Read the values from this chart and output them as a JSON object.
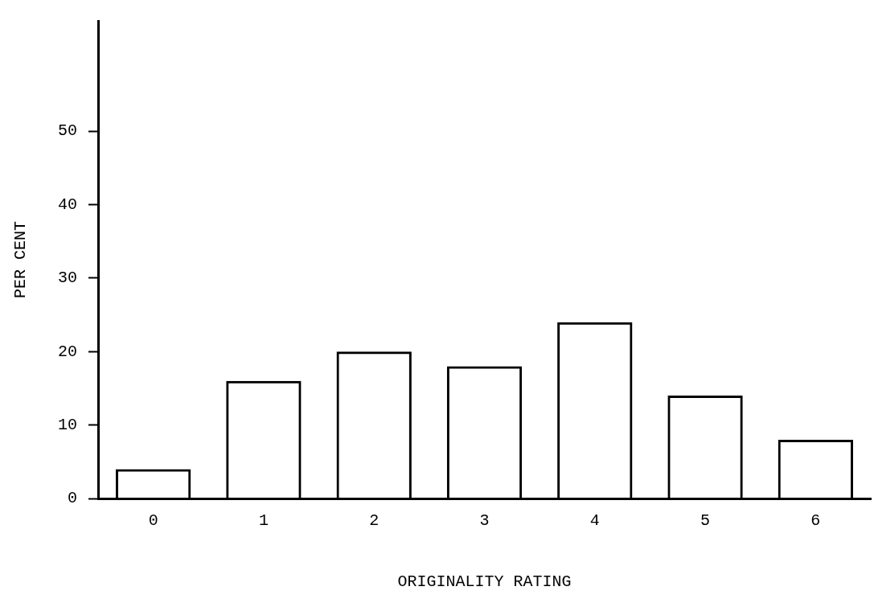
{
  "chart_data": {
    "type": "bar",
    "xlabel": "ORIGINALITY RATING",
    "ylabel": "PER CENT",
    "categories": [
      "0",
      "1",
      "2",
      "3",
      "4",
      "5",
      "6"
    ],
    "values": [
      4,
      16,
      20,
      18,
      24,
      14,
      8
    ],
    "color": "#000000",
    "ylim": [
      0,
      65
    ],
    "yticks": [
      0,
      10,
      20,
      30,
      40,
      50
    ],
    "grid": false,
    "legend": false
  }
}
